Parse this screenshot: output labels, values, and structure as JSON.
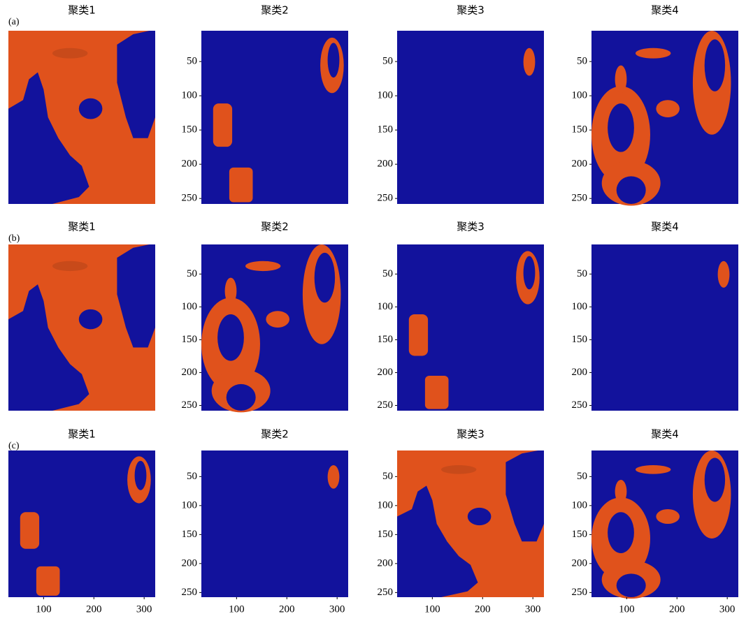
{
  "figure": {
    "xlim": [
      30,
      322
    ],
    "ylim": [
      5,
      258
    ],
    "rows": [
      {
        "label": "(a)",
        "panels": [
          {
            "title": "聚类1"
          },
          {
            "title": "聚类2",
            "yticks": [
              50,
              100,
              150,
              200,
              250
            ]
          },
          {
            "title": "聚类3",
            "yticks": [
              50,
              100,
              150,
              200,
              250
            ]
          },
          {
            "title": "聚类4",
            "yticks": [
              50,
              100,
              150,
              200,
              250
            ]
          }
        ]
      },
      {
        "label": "(b)",
        "panels": [
          {
            "title": "聚类1"
          },
          {
            "title": "聚类2",
            "yticks": [
              50,
              100,
              150,
              200,
              250
            ]
          },
          {
            "title": "聚类3",
            "yticks": [
              50,
              100,
              150,
              200,
              250
            ]
          },
          {
            "title": "聚类4",
            "yticks": [
              50,
              100,
              150,
              200,
              250
            ]
          }
        ]
      },
      {
        "label": "(c)",
        "panels": [
          {
            "title": "聚类1",
            "xticks": [
              100,
              200,
              300
            ]
          },
          {
            "title": "聚类2",
            "yticks": [
              50,
              100,
              150,
              200,
              250
            ],
            "xticks": [
              100,
              200,
              300
            ]
          },
          {
            "title": "聚类3",
            "yticks": [
              50,
              100,
              150,
              200,
              250
            ],
            "xticks": [
              100,
              200,
              300
            ]
          },
          {
            "title": "聚类4",
            "yticks": [
              50,
              100,
              150,
              200,
              250
            ],
            "xticks": [
              100,
              200,
              300
            ]
          }
        ]
      }
    ]
  }
}
